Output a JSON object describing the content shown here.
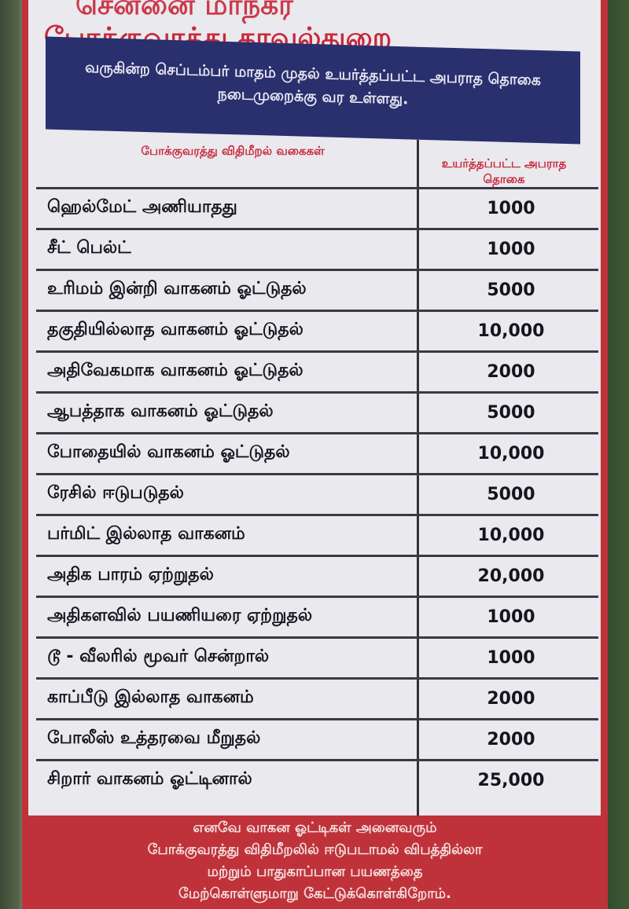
{
  "header": {
    "title_line1": "சென்னை மாநகர",
    "title_line2": "போக்குவரத்து காவல்துறை",
    "notice": "வருகின்ற செப்டம்பர் மாதம் முதல் உயர்த்தப்பட்ட அபராத தொகை நடைமுறைக்கு வர உள்ளது."
  },
  "table": {
    "col1_header": "போக்குவரத்து விதிமீறல் வகைகள்",
    "col2_header": "உயர்த்தப்பட்ட அபராத தொகை",
    "rows": [
      {
        "violation": "ஹெல்மேட் அணியாதது",
        "fine": "1000"
      },
      {
        "violation": "சீட் பெல்ட்",
        "fine": "1000"
      },
      {
        "violation": "உரிமம் இன்றி வாகனம் ஓட்டுதல்",
        "fine": "5000"
      },
      {
        "violation": "தகுதியில்லாத வாகனம் ஓட்டுதல்",
        "fine": "10,000"
      },
      {
        "violation": "அதிவேகமாக வாகனம் ஓட்டுதல்",
        "fine": "2000"
      },
      {
        "violation": "ஆபத்தாக வாகனம் ஓட்டுதல்",
        "fine": "5000"
      },
      {
        "violation": "போதையில் வாகனம் ஓட்டுதல்",
        "fine": "10,000"
      },
      {
        "violation": "ரேசில் ஈடுபடுதல்",
        "fine": "5000"
      },
      {
        "violation": "பர்மிட் இல்லாத வாகனம்",
        "fine": "10,000"
      },
      {
        "violation": "அதிக பாரம் ஏற்றுதல்",
        "fine": "20,000"
      },
      {
        "violation": "அதிகளவில் பயணியரை ஏற்றுதல்",
        "fine": "1000"
      },
      {
        "violation": "டூ - வீலரில் மூவர் சென்றால்",
        "fine": "1000"
      },
      {
        "violation": "காப்பீடு இல்லாத வாகனம்",
        "fine": "2000"
      },
      {
        "violation": "போலீஸ் உத்தரவை மீறுதல்",
        "fine": "2000"
      },
      {
        "violation": "சிறார் வாகனம் ஓட்டினால்",
        "fine": "25,000"
      }
    ]
  },
  "footer": {
    "line1": "எனவே வாகன ஓட்டிகள் அனைவரும்",
    "line2": "போக்குவரத்து விதிமீறலில் ஈடுபடாமல் விபத்தில்லா",
    "line3": "மற்றும் பாதுகாப்பான பயணத்தை",
    "line4": "மேற்கொள்ளுமாறு கேட்டுக்கொள்கிறோம்."
  },
  "colors": {
    "title_red": "#c8283a",
    "band_blue": "#2a2f6e",
    "board_red": "#c0323a"
  }
}
